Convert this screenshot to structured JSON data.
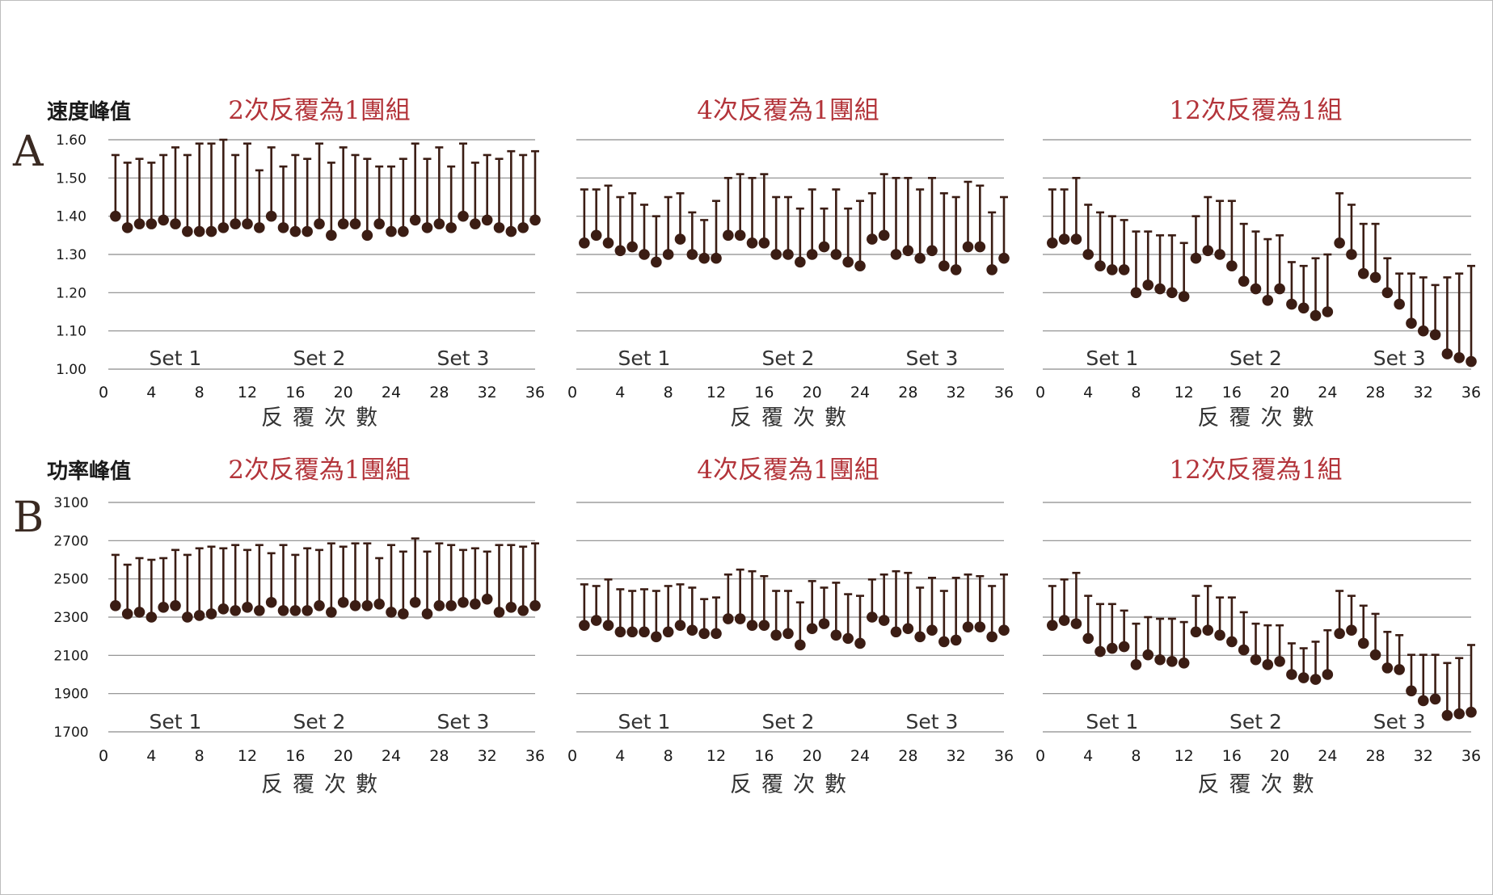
{
  "rows": [
    {
      "letter": "A",
      "title": "速度峰值",
      "yticks": [
        "1.60",
        "1.50",
        "1.40",
        "1.30",
        "1.20",
        "1.10",
        "1.00"
      ]
    },
    {
      "letter": "B",
      "title": "功率峰值",
      "yticks": [
        "3100",
        "2700",
        "2500",
        "2300",
        "2100",
        "1900",
        "1700"
      ]
    }
  ],
  "panel_titles": [
    "2次反覆為1團組",
    "4次反覆為1團組",
    "12次反覆為1組"
  ],
  "xlabel": "反覆次數",
  "set_labels": [
    "Set 1",
    "Set 2",
    "Set 3"
  ],
  "xticks": [
    "0",
    "4",
    "8",
    "12",
    "16",
    "20",
    "24",
    "28",
    "32",
    "36"
  ],
  "colors": {
    "title_red": "#b3343a",
    "marker": "#3b1d14",
    "grid": "#8a8a8a"
  },
  "chart_data": [
    {
      "type": "scatter",
      "title": "2次反覆為1團組",
      "ylabel": "速度峰值",
      "xlabel": "反覆次數",
      "ylim": [
        1.0,
        1.6
      ],
      "x": [
        1,
        2,
        3,
        4,
        5,
        6,
        7,
        8,
        9,
        10,
        11,
        12,
        13,
        14,
        15,
        16,
        17,
        18,
        19,
        20,
        21,
        22,
        23,
        24,
        25,
        26,
        27,
        28,
        29,
        30,
        31,
        32,
        33,
        34,
        35,
        36
      ],
      "series": [
        {
          "name": "",
          "values": [
            1.4,
            1.37,
            1.38,
            1.38,
            1.39,
            1.38,
            1.36,
            1.36,
            1.36,
            1.37,
            1.38,
            1.38,
            1.37,
            1.4,
            1.37,
            1.36,
            1.36,
            1.38,
            1.35,
            1.38,
            1.38,
            1.35,
            1.38,
            1.36,
            1.36,
            1.39,
            1.37,
            1.38,
            1.37,
            1.4,
            1.38,
            1.39,
            1.37,
            1.36,
            1.37,
            1.39
          ]
        },
        {
          "name": "",
          "values": [
            1.56,
            1.54,
            1.55,
            1.54,
            1.56,
            1.58,
            1.56,
            1.59,
            1.59,
            1.6,
            1.56,
            1.59,
            1.52,
            1.58,
            1.53,
            1.56,
            1.55,
            1.59,
            1.54,
            1.58,
            1.56,
            1.55,
            1.53,
            1.53,
            1.55,
            1.59,
            1.55,
            1.58,
            1.53,
            1.59,
            1.54,
            1.56,
            1.55,
            1.57,
            1.56,
            1.57
          ]
        }
      ]
    },
    {
      "type": "scatter",
      "title": "4次反覆為1團組",
      "ylabel": "速度峰值",
      "xlabel": "反覆次數",
      "ylim": [
        1.0,
        1.6
      ],
      "x": [
        1,
        2,
        3,
        4,
        5,
        6,
        7,
        8,
        9,
        10,
        11,
        12,
        13,
        14,
        15,
        16,
        17,
        18,
        19,
        20,
        21,
        22,
        23,
        24,
        25,
        26,
        27,
        28,
        29,
        30,
        31,
        32,
        33,
        34,
        35,
        36
      ],
      "series": [
        {
          "name": "",
          "values": [
            1.33,
            1.35,
            1.33,
            1.31,
            1.32,
            1.3,
            1.28,
            1.3,
            1.34,
            1.3,
            1.29,
            1.29,
            1.35,
            1.35,
            1.33,
            1.33,
            1.3,
            1.3,
            1.28,
            1.3,
            1.32,
            1.3,
            1.28,
            1.27,
            1.34,
            1.35,
            1.3,
            1.31,
            1.29,
            1.31,
            1.27,
            1.26,
            1.32,
            1.32,
            1.26,
            1.29
          ]
        },
        {
          "name": "",
          "values": [
            1.47,
            1.47,
            1.48,
            1.45,
            1.46,
            1.43,
            1.4,
            1.45,
            1.46,
            1.41,
            1.39,
            1.44,
            1.5,
            1.51,
            1.5,
            1.51,
            1.45,
            1.45,
            1.42,
            1.47,
            1.42,
            1.47,
            1.42,
            1.44,
            1.46,
            1.51,
            1.5,
            1.5,
            1.47,
            1.5,
            1.46,
            1.45,
            1.49,
            1.48,
            1.41,
            1.45
          ]
        }
      ]
    },
    {
      "type": "scatter",
      "title": "12次反覆為1組",
      "ylabel": "速度峰值",
      "xlabel": "反覆次數",
      "ylim": [
        1.0,
        1.6
      ],
      "x": [
        1,
        2,
        3,
        4,
        5,
        6,
        7,
        8,
        9,
        10,
        11,
        12,
        13,
        14,
        15,
        16,
        17,
        18,
        19,
        20,
        21,
        22,
        23,
        24,
        25,
        26,
        27,
        28,
        29,
        30,
        31,
        32,
        33,
        34,
        35,
        36
      ],
      "series": [
        {
          "name": "",
          "values": [
            1.33,
            1.34,
            1.34,
            1.3,
            1.27,
            1.26,
            1.26,
            1.2,
            1.22,
            1.21,
            1.2,
            1.19,
            1.29,
            1.31,
            1.3,
            1.27,
            1.23,
            1.21,
            1.18,
            1.21,
            1.17,
            1.16,
            1.14,
            1.15,
            1.33,
            1.3,
            1.25,
            1.24,
            1.2,
            1.17,
            1.12,
            1.1,
            1.09,
            1.04,
            1.03,
            1.02
          ]
        },
        {
          "name": "",
          "values": [
            1.47,
            1.47,
            1.5,
            1.43,
            1.41,
            1.4,
            1.39,
            1.36,
            1.36,
            1.35,
            1.35,
            1.33,
            1.4,
            1.45,
            1.44,
            1.44,
            1.38,
            1.36,
            1.34,
            1.35,
            1.28,
            1.27,
            1.29,
            1.3,
            1.46,
            1.43,
            1.38,
            1.38,
            1.29,
            1.25,
            1.25,
            1.24,
            1.22,
            1.24,
            1.25,
            1.27
          ]
        }
      ]
    },
    {
      "type": "scatter",
      "title": "2次反覆為1團組",
      "ylabel": "功率峰值",
      "xlabel": "反覆次數",
      "ylim": [
        1700,
        3100
      ],
      "x": [
        1,
        2,
        3,
        4,
        5,
        6,
        7,
        8,
        9,
        10,
        11,
        12,
        13,
        14,
        15,
        16,
        17,
        18,
        19,
        20,
        21,
        22,
        23,
        24,
        25,
        26,
        27,
        28,
        29,
        30,
        31,
        32,
        33,
        34,
        35,
        36
      ],
      "series": [
        {
          "name": "",
          "values": [
            2470,
            2420,
            2430,
            2400,
            2460,
            2470,
            2400,
            2410,
            2420,
            2450,
            2440,
            2460,
            2440,
            2490,
            2440,
            2440,
            2440,
            2470,
            2430,
            2490,
            2470,
            2470,
            2480,
            2430,
            2420,
            2490,
            2420,
            2470,
            2470,
            2490,
            2480,
            2510,
            2430,
            2460,
            2440,
            2470
          ]
        },
        {
          "name": "",
          "values": [
            2780,
            2720,
            2760,
            2750,
            2760,
            2810,
            2780,
            2820,
            2830,
            2820,
            2840,
            2810,
            2840,
            2790,
            2840,
            2780,
            2820,
            2810,
            2850,
            2830,
            2850,
            2850,
            2760,
            2840,
            2800,
            2880,
            2800,
            2850,
            2840,
            2810,
            2820,
            2800,
            2840,
            2840,
            2830,
            2850
          ]
        }
      ]
    },
    {
      "type": "scatter",
      "title": "4次反覆為1團組",
      "ylabel": "功率峰值",
      "xlabel": "反覆次數",
      "ylim": [
        1700,
        3100
      ],
      "x": [
        1,
        2,
        3,
        4,
        5,
        6,
        7,
        8,
        9,
        10,
        11,
        12,
        13,
        14,
        15,
        16,
        17,
        18,
        19,
        20,
        21,
        22,
        23,
        24,
        25,
        26,
        27,
        28,
        29,
        30,
        31,
        32,
        33,
        34,
        35,
        36
      ],
      "series": [
        {
          "name": "",
          "values": [
            2350,
            2380,
            2350,
            2310,
            2310,
            2310,
            2280,
            2310,
            2350,
            2320,
            2300,
            2300,
            2390,
            2390,
            2350,
            2350,
            2290,
            2300,
            2230,
            2330,
            2360,
            2290,
            2270,
            2240,
            2400,
            2380,
            2310,
            2330,
            2280,
            2320,
            2250,
            2260,
            2340,
            2340,
            2280,
            2320
          ]
        },
        {
          "name": "",
          "values": [
            2600,
            2590,
            2630,
            2570,
            2560,
            2570,
            2560,
            2590,
            2600,
            2580,
            2510,
            2520,
            2660,
            2690,
            2680,
            2650,
            2560,
            2560,
            2490,
            2620,
            2580,
            2610,
            2540,
            2530,
            2630,
            2660,
            2680,
            2670,
            2580,
            2640,
            2560,
            2640,
            2660,
            2650,
            2590,
            2660
          ]
        }
      ]
    },
    {
      "type": "scatter",
      "title": "12次反覆為1組",
      "ylabel": "功率峰值",
      "xlabel": "反覆次數",
      "ylim": [
        1700,
        3100
      ],
      "x": [
        1,
        2,
        3,
        4,
        5,
        6,
        7,
        8,
        9,
        10,
        11,
        12,
        13,
        14,
        15,
        16,
        17,
        18,
        19,
        20,
        21,
        22,
        23,
        24,
        25,
        26,
        27,
        28,
        29,
        30,
        31,
        32,
        33,
        34,
        35,
        36
      ],
      "series": [
        {
          "name": "",
          "values": [
            2350,
            2380,
            2360,
            2270,
            2190,
            2210,
            2220,
            2110,
            2170,
            2140,
            2130,
            2120,
            2310,
            2320,
            2290,
            2250,
            2200,
            2140,
            2110,
            2130,
            2050,
            2030,
            2020,
            2050,
            2300,
            2320,
            2240,
            2170,
            2090,
            2080,
            1950,
            1890,
            1900,
            1800,
            1810,
            1820
          ]
        },
        {
          "name": "",
          "values": [
            2590,
            2630,
            2670,
            2530,
            2480,
            2480,
            2440,
            2360,
            2400,
            2390,
            2390,
            2370,
            2530,
            2590,
            2520,
            2520,
            2430,
            2360,
            2350,
            2350,
            2240,
            2210,
            2250,
            2320,
            2560,
            2530,
            2470,
            2420,
            2310,
            2290,
            2170,
            2170,
            2170,
            2120,
            2150,
            2230
          ]
        }
      ]
    }
  ]
}
